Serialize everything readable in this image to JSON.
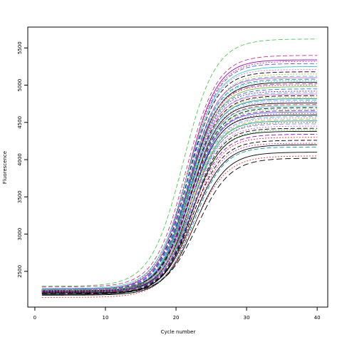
{
  "chart_data": {
    "type": "line",
    "title": "",
    "xlabel": "Cycle number",
    "ylabel": "Fluorescence",
    "xlim": [
      -1,
      41.5
    ],
    "ylim": [
      2020,
      5780
    ],
    "x_ticks": [
      0,
      10,
      20,
      30,
      40
    ],
    "y_ticks": [
      2500,
      3000,
      3500,
      4000,
      4500,
      5000,
      5500
    ],
    "x_tick_labels": [
      "0",
      "10",
      "20",
      "30",
      "40"
    ],
    "y_tick_labels": [
      "2500",
      "3000",
      "3500",
      "4000",
      "4500",
      "5000",
      "5500"
    ],
    "grid": false,
    "legend": "none",
    "x_range": [
      1,
      40
    ],
    "curve_model": "sigmoid: y = base + (plateau - base) / (1 + exp(-(x - midpoint) / slope))",
    "series_params_order": [
      "base",
      "plateau",
      "midpoint",
      "slope",
      "color",
      "dash"
    ],
    "series": [
      {
        "params": [
          2300,
          5620,
          21.0,
          2.3,
          "#4ec94e",
          "6,3"
        ]
      },
      {
        "params": [
          2290,
          5400,
          21.4,
          2.2,
          "#cc3399",
          "6,3"
        ]
      },
      {
        "params": [
          2260,
          5340,
          21.6,
          2.1,
          "#9900cc",
          ""
        ]
      },
      {
        "params": [
          2250,
          5320,
          21.5,
          2.2,
          "#dd3333",
          "2,2"
        ]
      },
      {
        "params": [
          2240,
          5290,
          21.7,
          2.1,
          "#3366ff",
          "6,3"
        ]
      },
      {
        "params": [
          2270,
          5250,
          21.5,
          2.2,
          "#33cccc",
          ""
        ]
      },
      {
        "params": [
          2230,
          5210,
          21.8,
          2.0,
          "#ff66cc",
          "2,2"
        ]
      },
      {
        "params": [
          2250,
          5180,
          21.6,
          2.1,
          "#000000",
          "6,3"
        ]
      },
      {
        "params": [
          2240,
          5150,
          21.9,
          2.1,
          "#99cc33",
          "2,2"
        ]
      },
      {
        "params": [
          2260,
          5120,
          21.7,
          2.1,
          "#6699ff",
          "6,3"
        ]
      },
      {
        "params": [
          2230,
          5100,
          21.8,
          2.0,
          "#cc66cc",
          ""
        ]
      },
      {
        "params": [
          2250,
          5080,
          21.7,
          2.1,
          "#009999",
          "6,3"
        ]
      },
      {
        "params": [
          2240,
          5060,
          21.9,
          2.0,
          "#33cccc",
          "2,2"
        ]
      },
      {
        "params": [
          2220,
          5040,
          21.8,
          2.1,
          "#000000",
          ""
        ]
      },
      {
        "params": [
          2250,
          5020,
          21.7,
          2.1,
          "#cc3399",
          "6,3"
        ]
      },
      {
        "params": [
          2240,
          5000,
          21.9,
          2.0,
          "#dd3333",
          "2,2"
        ]
      },
      {
        "params": [
          2230,
          4980,
          21.8,
          2.1,
          "#4ec94e",
          ""
        ]
      },
      {
        "params": [
          2260,
          4950,
          21.7,
          2.1,
          "#3366ff",
          "6,3"
        ]
      },
      {
        "params": [
          2240,
          4920,
          21.9,
          2.0,
          "#9900cc",
          "2,2"
        ]
      },
      {
        "params": [
          2250,
          4900,
          21.8,
          2.1,
          "#33cccc",
          "6,3"
        ]
      },
      {
        "params": [
          2230,
          4880,
          21.9,
          2.0,
          "#ff66cc",
          ""
        ]
      },
      {
        "params": [
          2220,
          4860,
          21.8,
          2.1,
          "#000000",
          "6,3"
        ]
      },
      {
        "params": [
          2250,
          4840,
          22.0,
          2.0,
          "#99cc33",
          "2,2"
        ]
      },
      {
        "params": [
          2240,
          4820,
          21.8,
          2.1,
          "#009999",
          ""
        ]
      },
      {
        "params": [
          2230,
          4800,
          21.9,
          2.0,
          "#6699ff",
          "6,3"
        ]
      },
      {
        "params": [
          2250,
          4780,
          21.8,
          2.1,
          "#cc66cc",
          "2,2"
        ]
      },
      {
        "params": [
          2220,
          4760,
          22.0,
          2.0,
          "#000000",
          ""
        ]
      },
      {
        "params": [
          2240,
          4740,
          21.9,
          2.1,
          "#dd3333",
          "6,3"
        ]
      },
      {
        "params": [
          2230,
          4720,
          22.0,
          2.0,
          "#33cccc",
          ""
        ]
      },
      {
        "params": [
          2250,
          4700,
          21.9,
          2.1,
          "#000000",
          "6,3"
        ]
      },
      {
        "params": [
          2220,
          4680,
          22.1,
          2.0,
          "#4ec94e",
          "2,2"
        ]
      },
      {
        "params": [
          2240,
          4660,
          21.9,
          2.1,
          "#9900cc",
          "6,3"
        ]
      },
      {
        "params": [
          2230,
          4640,
          22.1,
          2.0,
          "#3366ff",
          ""
        ]
      },
      {
        "params": [
          2210,
          4620,
          22.0,
          2.1,
          "#cc3399",
          "2,2"
        ]
      },
      {
        "params": [
          2240,
          4600,
          22.1,
          2.0,
          "#000000",
          ""
        ]
      },
      {
        "params": [
          2230,
          4580,
          22.0,
          2.1,
          "#33cccc",
          "6,3"
        ]
      },
      {
        "params": [
          2220,
          4560,
          22.2,
          2.0,
          "#ff66cc",
          "2,2"
        ]
      },
      {
        "params": [
          2250,
          4540,
          22.0,
          2.1,
          "#99cc33",
          "6,3"
        ]
      },
      {
        "params": [
          2230,
          4520,
          22.2,
          2.0,
          "#009999",
          ""
        ]
      },
      {
        "params": [
          2220,
          4500,
          22.1,
          2.1,
          "#dd3333",
          "2,2"
        ]
      },
      {
        "params": [
          2210,
          4480,
          22.2,
          2.0,
          "#6699ff",
          "6,3"
        ]
      },
      {
        "params": [
          2240,
          4450,
          22.1,
          2.1,
          "#cc66cc",
          "2,2"
        ]
      },
      {
        "params": [
          2230,
          4420,
          22.3,
          2.0,
          "#000000",
          "6,3"
        ]
      },
      {
        "params": [
          2220,
          4400,
          22.2,
          2.1,
          "#4ec94e",
          "2,2"
        ]
      },
      {
        "params": [
          2210,
          4380,
          22.3,
          2.0,
          "#000000",
          ""
        ]
      },
      {
        "params": [
          2230,
          4340,
          22.2,
          2.1,
          "#9900cc",
          "6,3"
        ]
      },
      {
        "params": [
          2220,
          4300,
          22.4,
          2.0,
          "#dd3333",
          "2,2"
        ]
      },
      {
        "params": [
          2210,
          4260,
          22.3,
          2.1,
          "#000000",
          "6,3"
        ]
      },
      {
        "params": [
          2200,
          4220,
          22.5,
          2.0,
          "#cc3399",
          "2,2"
        ]
      },
      {
        "params": [
          2190,
          4200,
          22.4,
          2.2,
          "#000000",
          ""
        ]
      },
      {
        "params": [
          2200,
          4170,
          22.6,
          2.1,
          "#009999",
          "6,3"
        ]
      },
      {
        "params": [
          2180,
          4100,
          22.7,
          2.2,
          "#000000",
          ""
        ]
      },
      {
        "params": [
          2150,
          4050,
          22.5,
          2.3,
          "#dd3333",
          "2,2"
        ]
      },
      {
        "params": [
          2200,
          4020,
          23.0,
          2.3,
          "#000000",
          "8,4"
        ]
      }
    ]
  }
}
